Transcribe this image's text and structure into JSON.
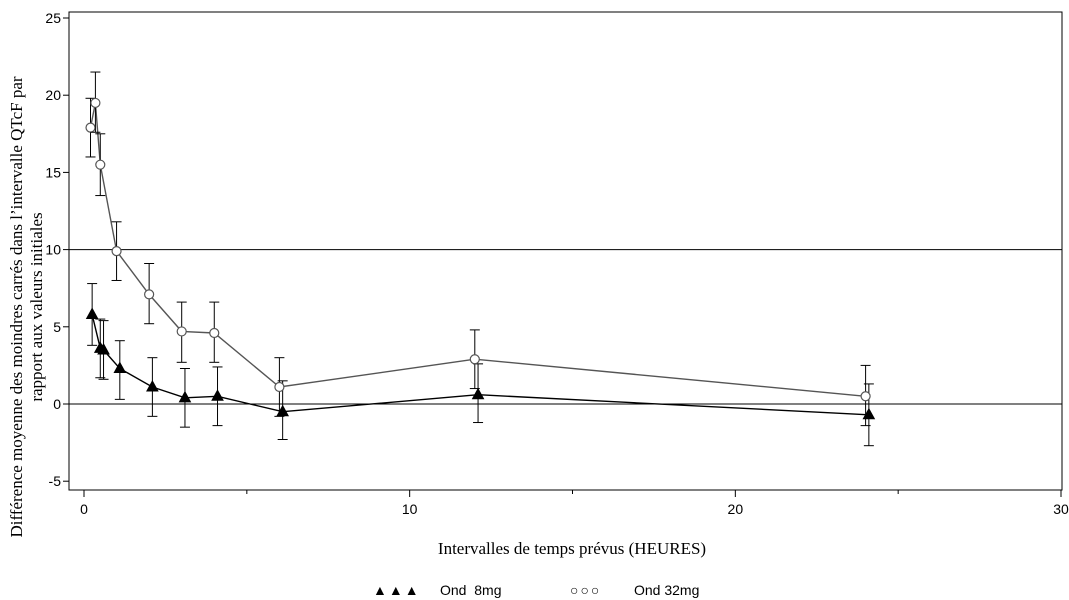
{
  "chart_data": {
    "type": "line",
    "xlabel": "Intervalles de temps prévus (HEURES)",
    "ylabel_line1": "Différence moyenne des moindres carrés dans  l’intervalle QTcF par",
    "ylabel_line2": "rapport aux valeurs initiales",
    "xlim": [
      0,
      30
    ],
    "ylim": [
      -5,
      25
    ],
    "x_ticks": [
      0,
      10,
      20,
      30
    ],
    "y_ticks": [
      -5,
      0,
      5,
      10,
      15,
      20,
      25
    ],
    "x_tick_labels": [
      "0",
      "10",
      "20",
      "30"
    ],
    "y_tick_labels": [
      "-5",
      "0",
      "5",
      "10",
      "15",
      "20",
      "25"
    ],
    "reference_lines_y": [
      0,
      10
    ],
    "grid": false,
    "legend_position": "bottom",
    "series": [
      {
        "name": "Ond  8mg",
        "legend_symbols": "▲▲▲",
        "marker": "filled-triangle",
        "color": "#000000",
        "x": [
          0.25,
          0.5,
          0.6,
          1.1,
          2.1,
          3.1,
          4.1,
          6.1,
          12.1,
          24.1
        ],
        "y": [
          5.8,
          3.6,
          3.5,
          2.3,
          1.1,
          0.4,
          0.5,
          -0.5,
          0.6,
          -0.7
        ],
        "lower": [
          3.8,
          1.7,
          1.6,
          0.3,
          -0.8,
          -1.5,
          -1.4,
          -2.3,
          -1.2,
          -2.7
        ],
        "upper": [
          7.8,
          5.5,
          5.4,
          4.1,
          3.0,
          2.3,
          2.4,
          1.5,
          2.6,
          1.3
        ]
      },
      {
        "name": "Ond 32mg",
        "legend_symbols": "○○○",
        "marker": "open-circle",
        "color": "#555555",
        "x": [
          0.2,
          0.35,
          0.5,
          1.0,
          2.0,
          3.0,
          4.0,
          6.0,
          12.0,
          24.0
        ],
        "y": [
          17.9,
          19.5,
          15.5,
          9.9,
          7.1,
          4.7,
          4.6,
          1.1,
          2.9,
          0.5
        ],
        "lower": [
          16.0,
          17.6,
          13.5,
          8.0,
          5.2,
          2.7,
          2.7,
          -0.8,
          1.0,
          -1.4
        ],
        "upper": [
          19.8,
          21.5,
          17.5,
          11.8,
          9.1,
          6.6,
          6.6,
          3.0,
          4.8,
          2.5
        ]
      }
    ]
  }
}
